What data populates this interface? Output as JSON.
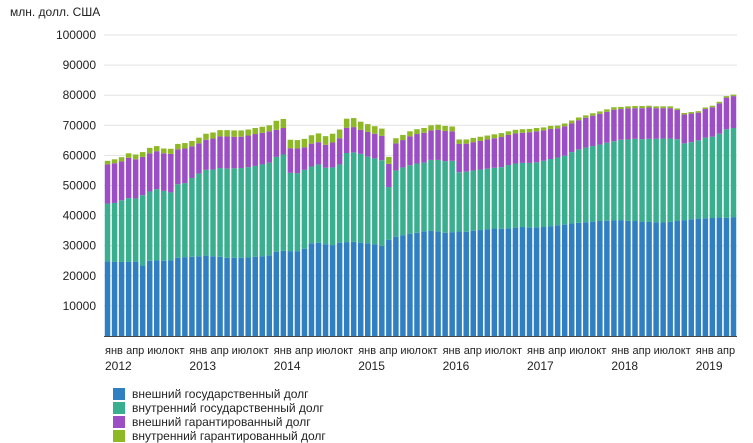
{
  "chart_data": {
    "type": "bar",
    "stacked": true,
    "unit_label": "млн. долл. США",
    "y_ticks": [
      "100000",
      "90000",
      "80000",
      "70000",
      "60000",
      "50000",
      "40000",
      "30000",
      "20000",
      "10000"
    ],
    "ylim": [
      0,
      100000
    ],
    "grid": true,
    "legend_position": "bottom",
    "x_labels": [
      {
        "m": 0,
        "label": "янв"
      },
      {
        "m": 3,
        "label": "апр"
      },
      {
        "m": 6,
        "label": "июл"
      },
      {
        "m": 9,
        "label": "окт"
      },
      {
        "m": 12,
        "label": "янв"
      },
      {
        "m": 15,
        "label": "апр"
      },
      {
        "m": 18,
        "label": "июл"
      },
      {
        "m": 21,
        "label": "окт"
      },
      {
        "m": 24,
        "label": "янв"
      },
      {
        "m": 27,
        "label": "апр"
      },
      {
        "m": 30,
        "label": "июл"
      },
      {
        "m": 33,
        "label": "окт"
      },
      {
        "m": 36,
        "label": "янв"
      },
      {
        "m": 39,
        "label": "апр"
      },
      {
        "m": 42,
        "label": "июл"
      },
      {
        "m": 45,
        "label": "окт"
      },
      {
        "m": 48,
        "label": "янв"
      },
      {
        "m": 51,
        "label": "апр"
      },
      {
        "m": 54,
        "label": "июл"
      },
      {
        "m": 57,
        "label": "окт"
      },
      {
        "m": 60,
        "label": "янв"
      },
      {
        "m": 63,
        "label": "апр"
      },
      {
        "m": 66,
        "label": "июл"
      },
      {
        "m": 69,
        "label": "окт"
      },
      {
        "m": 72,
        "label": "янв"
      },
      {
        "m": 75,
        "label": "апр"
      },
      {
        "m": 78,
        "label": "июл"
      },
      {
        "m": 81,
        "label": "окт"
      },
      {
        "m": 84,
        "label": "янв"
      },
      {
        "m": 87,
        "label": "апр"
      }
    ],
    "year_labels": [
      {
        "m": 0,
        "label": "2012"
      },
      {
        "m": 12,
        "label": "2013"
      },
      {
        "m": 24,
        "label": "2014"
      },
      {
        "m": 36,
        "label": "2015"
      },
      {
        "m": 48,
        "label": "2016"
      },
      {
        "m": 60,
        "label": "2017"
      },
      {
        "m": 72,
        "label": "2018"
      },
      {
        "m": 84,
        "label": "2019"
      }
    ],
    "series": [
      {
        "name": "внешний государственный долг",
        "color": "#2f7fc1",
        "values": [
          24800,
          24700,
          24600,
          24600,
          24700,
          23400,
          25000,
          25100,
          25000,
          25200,
          26000,
          26200,
          26300,
          26500,
          26700,
          26500,
          26300,
          26000,
          26000,
          26000,
          26100,
          26300,
          26500,
          26800,
          28000,
          28300,
          28200,
          28100,
          29000,
          30800,
          31000,
          30500,
          30200,
          31000,
          31200,
          31300,
          31000,
          30800,
          30500,
          30000,
          32000,
          33000,
          33500,
          34000,
          34300,
          34800,
          35000,
          34800,
          34300,
          34500,
          34700,
          34600,
          35000,
          35200,
          35500,
          35700,
          35600,
          35800,
          36000,
          36200,
          36000,
          36100,
          36200,
          36500,
          36800,
          37000,
          37400,
          37600,
          37800,
          38000,
          38200,
          38300,
          38400,
          38500,
          38300,
          38200,
          38000,
          37900,
          37800,
          37700,
          37900,
          38200,
          38500,
          38800,
          39000,
          39100,
          39200,
          39400,
          39300,
          39500
        ]
      },
      {
        "name": "внутренний государственный долг",
        "color": "#3aaf8f",
        "values": [
          19200,
          19500,
          20500,
          21200,
          21000,
          23400,
          23000,
          23700,
          23200,
          22500,
          24400,
          24600,
          26200,
          27500,
          28500,
          28800,
          29500,
          29600,
          29700,
          29800,
          30000,
          30200,
          30500,
          30800,
          31500,
          32000,
          26000,
          26000,
          26200,
          25500,
          26000,
          25400,
          25800,
          26000,
          29600,
          29700,
          29500,
          28800,
          28500,
          28400,
          17500,
          22000,
          22500,
          22700,
          23000,
          22800,
          23500,
          23700,
          23800,
          23700,
          19700,
          20000,
          20000,
          20100,
          20100,
          20200,
          20500,
          21000,
          21300,
          21300,
          21500,
          21600,
          22000,
          22300,
          22500,
          22900,
          23700,
          24400,
          24800,
          25100,
          25400,
          25900,
          26300,
          26700,
          27000,
          27300,
          27400,
          27600,
          27700,
          27900,
          27700,
          27200,
          25500,
          25600,
          26000,
          26800,
          27000,
          27800,
          29400,
          29600
        ]
      },
      {
        "name": "внешний гарантированный долг",
        "color": "#9c4fc4",
        "values": [
          13000,
          13200,
          12900,
          13400,
          13000,
          12700,
          12700,
          12600,
          12500,
          12800,
          11600,
          11500,
          10500,
          10000,
          10000,
          10300,
          10500,
          10700,
          10500,
          10400,
          10500,
          10600,
          10500,
          10400,
          9000,
          8800,
          8200,
          8200,
          7500,
          7600,
          7400,
          7600,
          8300,
          8700,
          8400,
          8400,
          8000,
          8200,
          8200,
          8100,
          7700,
          9000,
          9100,
          9600,
          9800,
          9900,
          9800,
          10000,
          10000,
          9800,
          9400,
          9300,
          9400,
          9500,
          9700,
          9800,
          10000,
          10000,
          10000,
          10000,
          10200,
          10300,
          10100,
          10000,
          9700,
          9800,
          9600,
          9700,
          9900,
          10100,
          10200,
          10300,
          10500,
          10200,
          10300,
          10200,
          10300,
          10400,
          10200,
          10100,
          10100,
          9700,
          9600,
          9500,
          9200,
          9500,
          9800,
          10100,
          10500,
          10600
        ]
      },
      {
        "name": "внутренний гарантированный долг",
        "color": "#8fb827",
        "values": [
          1200,
          1300,
          1400,
          1500,
          1600,
          1600,
          1800,
          1700,
          1600,
          1700,
          1800,
          1800,
          1800,
          1900,
          2000,
          2000,
          2100,
          2100,
          2100,
          2100,
          2000,
          2000,
          2000,
          2000,
          3000,
          3000,
          2800,
          2800,
          2800,
          2800,
          2900,
          2900,
          2900,
          2900,
          3000,
          3000,
          2700,
          2600,
          2500,
          2400,
          2300,
          1700,
          1700,
          1700,
          1600,
          1600,
          1700,
          1700,
          1700,
          1600,
          1500,
          1400,
          1400,
          1400,
          1300,
          1300,
          1300,
          1200,
          1200,
          1200,
          1100,
          1100,
          1000,
          1000,
          900,
          900,
          900,
          900,
          800,
          800,
          800,
          800,
          800,
          700,
          700,
          700,
          700,
          600,
          600,
          600,
          600,
          500,
          500,
          500,
          500,
          500,
          500,
          500,
          500,
          500
        ]
      }
    ]
  }
}
